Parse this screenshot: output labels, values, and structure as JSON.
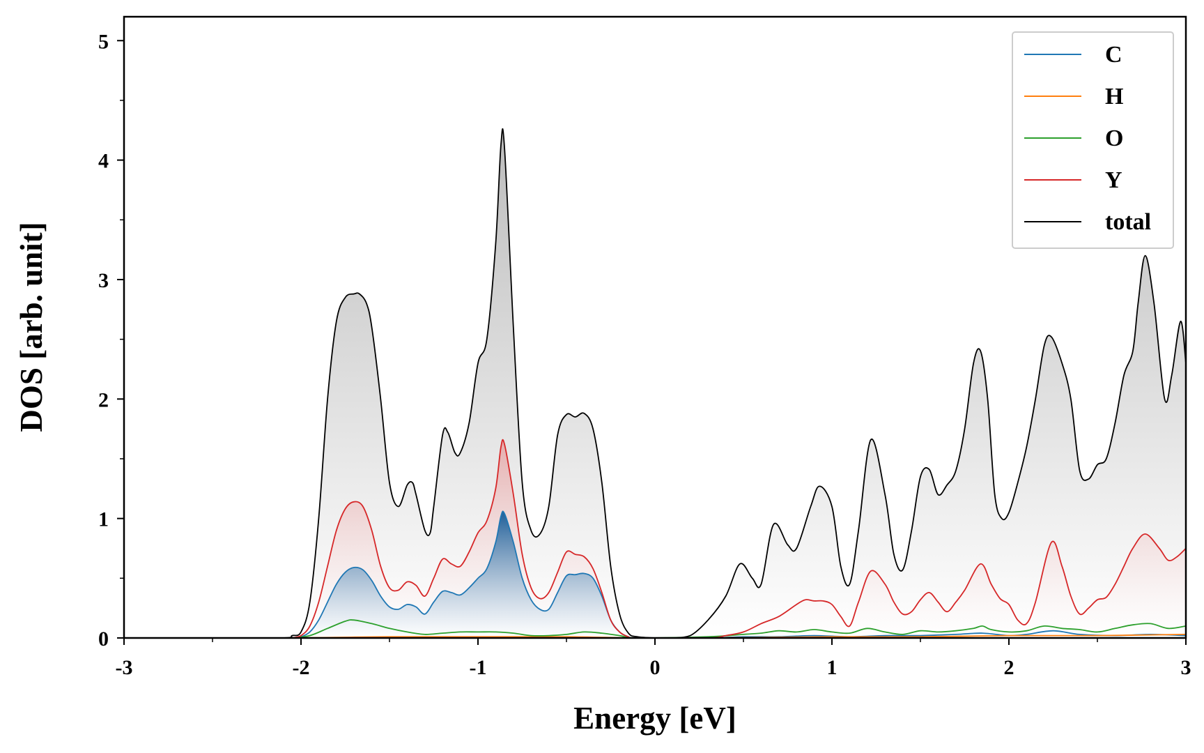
{
  "chart_data": {
    "type": "area",
    "xlabel": "Energy [eV]",
    "ylabel": "DOS [arb. unit]",
    "xlim": [
      -3,
      3
    ],
    "ylim": [
      0,
      5.2
    ],
    "xticks": [
      -3,
      -2,
      -1,
      0,
      1,
      2,
      3
    ],
    "xtick_labels": [
      "-3",
      "-2",
      "-1",
      "0",
      "1",
      "2",
      "3"
    ],
    "yticks": [
      0,
      1,
      2,
      3,
      4,
      5
    ],
    "ytick_labels": [
      "0",
      "1",
      "2",
      "3",
      "4",
      "5"
    ],
    "grid": false,
    "legend_position": "top-right",
    "series": [
      {
        "name": "C",
        "color": "#1f77b4",
        "fill": true,
        "x": [
          -2.05,
          -2.0,
          -1.95,
          -1.9,
          -1.85,
          -1.8,
          -1.75,
          -1.7,
          -1.65,
          -1.6,
          -1.55,
          -1.5,
          -1.45,
          -1.4,
          -1.35,
          -1.3,
          -1.25,
          -1.2,
          -1.15,
          -1.1,
          -1.05,
          -1.0,
          -0.95,
          -0.9,
          -0.87,
          -0.85,
          -0.8,
          -0.75,
          -0.7,
          -0.65,
          -0.6,
          -0.55,
          -0.5,
          -0.45,
          -0.4,
          -0.35,
          -0.3,
          -0.25,
          -0.2,
          -0.15,
          -0.1,
          0.3,
          0.5,
          0.7,
          0.9,
          1.1,
          1.3,
          1.5,
          1.7,
          1.85,
          2.0,
          2.1,
          2.25,
          2.4,
          2.6,
          2.8,
          3.0
        ],
        "y": [
          0.0,
          0.01,
          0.05,
          0.15,
          0.3,
          0.45,
          0.55,
          0.59,
          0.57,
          0.48,
          0.35,
          0.26,
          0.24,
          0.28,
          0.26,
          0.2,
          0.3,
          0.39,
          0.38,
          0.36,
          0.42,
          0.5,
          0.58,
          0.8,
          1.02,
          1.04,
          0.8,
          0.5,
          0.32,
          0.24,
          0.24,
          0.38,
          0.52,
          0.53,
          0.54,
          0.5,
          0.35,
          0.15,
          0.05,
          0.01,
          0.0,
          0.0,
          0.01,
          0.01,
          0.02,
          0.01,
          0.02,
          0.02,
          0.03,
          0.04,
          0.02,
          0.03,
          0.06,
          0.03,
          0.02,
          0.03,
          0.02
        ]
      },
      {
        "name": "H",
        "color": "#ff7f0e",
        "fill": false,
        "x": [
          -2.05,
          -1.5,
          -1.0,
          -0.5,
          -0.1,
          0.3,
          1.0,
          1.5,
          2.0,
          2.5,
          3.0
        ],
        "y": [
          0.0,
          0.01,
          0.01,
          0.01,
          0.0,
          0.0,
          0.01,
          0.01,
          0.02,
          0.02,
          0.03
        ]
      },
      {
        "name": "O",
        "color": "#2ca02c",
        "fill": false,
        "x": [
          -2.05,
          -1.95,
          -1.85,
          -1.75,
          -1.7,
          -1.6,
          -1.5,
          -1.4,
          -1.3,
          -1.2,
          -1.1,
          -1.0,
          -0.9,
          -0.8,
          -0.7,
          -0.6,
          -0.5,
          -0.4,
          -0.3,
          -0.2,
          -0.1,
          0.3,
          0.5,
          0.6,
          0.7,
          0.8,
          0.9,
          1.0,
          1.1,
          1.2,
          1.3,
          1.4,
          1.5,
          1.6,
          1.7,
          1.8,
          1.85,
          1.9,
          2.0,
          2.1,
          2.2,
          2.3,
          2.4,
          2.5,
          2.6,
          2.7,
          2.8,
          2.9,
          3.0
        ],
        "y": [
          0.0,
          0.02,
          0.08,
          0.14,
          0.15,
          0.12,
          0.08,
          0.05,
          0.03,
          0.04,
          0.05,
          0.05,
          0.05,
          0.04,
          0.02,
          0.02,
          0.03,
          0.05,
          0.04,
          0.02,
          0.0,
          0.01,
          0.03,
          0.04,
          0.06,
          0.05,
          0.07,
          0.05,
          0.04,
          0.08,
          0.05,
          0.03,
          0.06,
          0.05,
          0.06,
          0.08,
          0.1,
          0.07,
          0.05,
          0.06,
          0.1,
          0.08,
          0.07,
          0.05,
          0.08,
          0.11,
          0.12,
          0.08,
          0.1
        ]
      },
      {
        "name": "Y",
        "color": "#d62728",
        "fill": true,
        "x": [
          -2.05,
          -2.0,
          -1.95,
          -1.9,
          -1.85,
          -1.8,
          -1.75,
          -1.7,
          -1.65,
          -1.6,
          -1.55,
          -1.5,
          -1.45,
          -1.4,
          -1.35,
          -1.3,
          -1.25,
          -1.2,
          -1.15,
          -1.1,
          -1.05,
          -1.0,
          -0.95,
          -0.9,
          -0.87,
          -0.85,
          -0.8,
          -0.75,
          -0.7,
          -0.65,
          -0.6,
          -0.55,
          -0.5,
          -0.45,
          -0.4,
          -0.35,
          -0.3,
          -0.25,
          -0.2,
          -0.15,
          -0.1,
          0.3,
          0.4,
          0.5,
          0.6,
          0.7,
          0.8,
          0.85,
          0.9,
          0.95,
          1.0,
          1.05,
          1.1,
          1.15,
          1.22,
          1.3,
          1.35,
          1.4,
          1.45,
          1.5,
          1.55,
          1.6,
          1.65,
          1.7,
          1.75,
          1.84,
          1.9,
          1.95,
          2.0,
          2.05,
          2.1,
          2.15,
          2.24,
          2.3,
          2.35,
          2.4,
          2.45,
          2.5,
          2.55,
          2.6,
          2.65,
          2.7,
          2.77,
          2.85,
          2.9,
          2.95,
          3.0
        ],
        "y": [
          0.0,
          0.02,
          0.1,
          0.3,
          0.6,
          0.9,
          1.08,
          1.14,
          1.1,
          0.9,
          0.6,
          0.42,
          0.4,
          0.47,
          0.44,
          0.35,
          0.5,
          0.66,
          0.62,
          0.6,
          0.72,
          0.88,
          0.98,
          1.25,
          1.6,
          1.62,
          1.2,
          0.7,
          0.42,
          0.33,
          0.38,
          0.55,
          0.72,
          0.7,
          0.68,
          0.58,
          0.38,
          0.15,
          0.05,
          0.01,
          0.0,
          0.0,
          0.02,
          0.05,
          0.12,
          0.18,
          0.28,
          0.32,
          0.31,
          0.31,
          0.28,
          0.18,
          0.1,
          0.3,
          0.56,
          0.45,
          0.3,
          0.2,
          0.22,
          0.32,
          0.38,
          0.3,
          0.22,
          0.3,
          0.4,
          0.62,
          0.45,
          0.33,
          0.28,
          0.15,
          0.12,
          0.3,
          0.8,
          0.6,
          0.35,
          0.2,
          0.25,
          0.32,
          0.34,
          0.45,
          0.6,
          0.75,
          0.87,
          0.75,
          0.65,
          0.68,
          0.75
        ]
      },
      {
        "name": "total",
        "color": "#000000",
        "fill": true,
        "x": [
          -3.0,
          -2.5,
          -2.1,
          -2.05,
          -2.0,
          -1.95,
          -1.9,
          -1.85,
          -1.8,
          -1.75,
          -1.7,
          -1.67,
          -1.63,
          -1.6,
          -1.55,
          -1.5,
          -1.45,
          -1.4,
          -1.37,
          -1.35,
          -1.3,
          -1.27,
          -1.25,
          -1.2,
          -1.17,
          -1.13,
          -1.1,
          -1.05,
          -1.0,
          -0.95,
          -0.9,
          -0.87,
          -0.85,
          -0.8,
          -0.75,
          -0.7,
          -0.65,
          -0.6,
          -0.55,
          -0.5,
          -0.45,
          -0.4,
          -0.35,
          -0.3,
          -0.25,
          -0.2,
          -0.15,
          -0.1,
          0.0,
          0.1,
          0.2,
          0.3,
          0.4,
          0.48,
          0.55,
          0.6,
          0.67,
          0.75,
          0.8,
          0.88,
          0.93,
          1.0,
          1.05,
          1.1,
          1.15,
          1.22,
          1.3,
          1.35,
          1.4,
          1.45,
          1.5,
          1.55,
          1.6,
          1.65,
          1.7,
          1.75,
          1.8,
          1.84,
          1.88,
          1.92,
          1.96,
          2.0,
          2.05,
          2.1,
          2.15,
          2.2,
          2.24,
          2.3,
          2.35,
          2.4,
          2.45,
          2.5,
          2.55,
          2.6,
          2.65,
          2.7,
          2.73,
          2.77,
          2.82,
          2.88,
          2.92,
          2.97,
          3.0
        ],
        "y": [
          0.0,
          0.0,
          0.0,
          0.02,
          0.05,
          0.3,
          1.0,
          2.0,
          2.65,
          2.85,
          2.88,
          2.88,
          2.8,
          2.6,
          2.0,
          1.3,
          1.1,
          1.28,
          1.3,
          1.2,
          0.9,
          0.88,
          1.1,
          1.7,
          1.72,
          1.55,
          1.55,
          1.8,
          2.3,
          2.5,
          3.3,
          4.13,
          4.1,
          2.6,
          1.3,
          0.9,
          0.87,
          1.1,
          1.7,
          1.87,
          1.85,
          1.88,
          1.75,
          1.3,
          0.6,
          0.2,
          0.04,
          0.01,
          0.0,
          0.0,
          0.02,
          0.15,
          0.35,
          0.62,
          0.5,
          0.45,
          0.95,
          0.78,
          0.75,
          1.1,
          1.27,
          1.1,
          0.6,
          0.45,
          0.9,
          1.66,
          1.2,
          0.7,
          0.57,
          0.9,
          1.35,
          1.41,
          1.2,
          1.28,
          1.4,
          1.75,
          2.3,
          2.4,
          2.0,
          1.2,
          1.0,
          1.05,
          1.3,
          1.6,
          2.0,
          2.45,
          2.52,
          2.3,
          2.0,
          1.4,
          1.33,
          1.45,
          1.5,
          1.8,
          2.2,
          2.4,
          2.8,
          3.2,
          2.8,
          2.0,
          2.2,
          2.65,
          2.3
        ]
      }
    ]
  }
}
